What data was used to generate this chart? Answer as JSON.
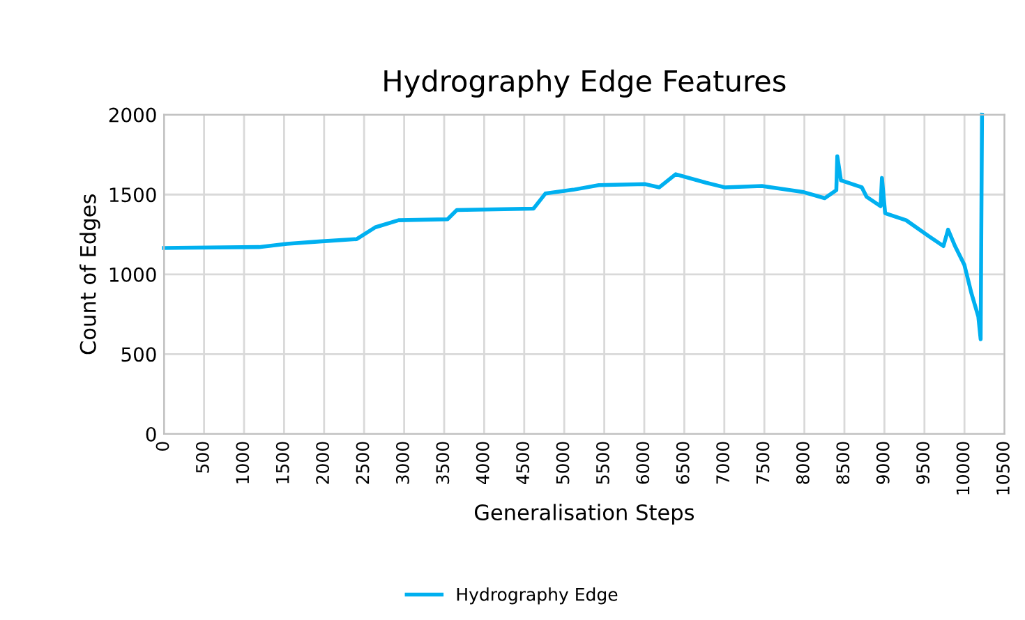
{
  "chart_data": {
    "type": "line",
    "title": "Hydrography Edge Features",
    "xlabel": "Generalisation Steps",
    "ylabel": "Count of Edges",
    "series": [
      {
        "name": "Hydrography Edge",
        "color": "#00b0f0",
        "x": [
          0,
          1187,
          1536,
          1942,
          2408,
          2640,
          2931,
          3542,
          3658,
          4617,
          4764,
          5113,
          5432,
          6013,
          6188,
          6392,
          6771,
          7003,
          7469,
          7992,
          8254,
          8399,
          8411,
          8457,
          8718,
          8777,
          8952,
          8969,
          9009,
          9271,
          9563,
          9737,
          9795,
          9882,
          9999,
          10086,
          10173,
          10202,
          10219
        ],
        "values": [
          1165,
          1171,
          1191,
          1206,
          1221,
          1295,
          1339,
          1345,
          1403,
          1412,
          1506,
          1530,
          1559,
          1565,
          1545,
          1627,
          1574,
          1545,
          1553,
          1515,
          1477,
          1527,
          1740,
          1589,
          1545,
          1486,
          1427,
          1604,
          1383,
          1339,
          1236,
          1177,
          1280,
          1177,
          1059,
          883,
          735,
          594,
          2000
        ]
      }
    ],
    "xlim": [
      0,
      10500
    ],
    "xticks": [
      0,
      500,
      1000,
      1500,
      2000,
      2500,
      3000,
      3500,
      4000,
      4500,
      5000,
      5500,
      6000,
      6500,
      7000,
      7500,
      8000,
      8500,
      9000,
      9500,
      10000,
      10500
    ],
    "ylim": [
      0,
      2000
    ],
    "yticks": [
      0,
      500,
      1000,
      1500,
      2000
    ],
    "grid": true,
    "legend": "bottom",
    "marker": "none",
    "line_style": "solid"
  }
}
